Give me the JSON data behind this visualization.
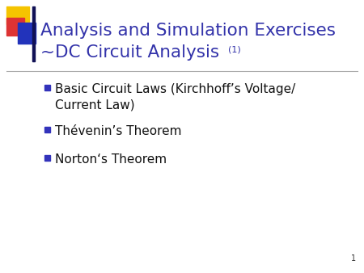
{
  "title_line1": "Analysis and Simulation Exercises",
  "title_line2": "~DC Circuit Analysis",
  "title_superscript": "(1)",
  "title_color": "#3333aa",
  "background_color": "#ffffff",
  "divider_color": "#aaaaaa",
  "bullet_color": "#111111",
  "bullet_marker_color": "#3333bb",
  "bullet_items": [
    "Basic Circuit Laws (Kirchhoff’s Voltage/\nCurrent Law)",
    "Thévenin’s Theorem",
    "Norton‘s Theorem"
  ],
  "slide_number": "1",
  "logo_colors": {
    "yellow": "#f5c400",
    "red": "#dd3333",
    "blue": "#2233bb"
  },
  "title_fontsize": 15.5,
  "bullet_fontsize": 11,
  "superscript_fontsize": 8,
  "slide_num_fontsize": 7
}
